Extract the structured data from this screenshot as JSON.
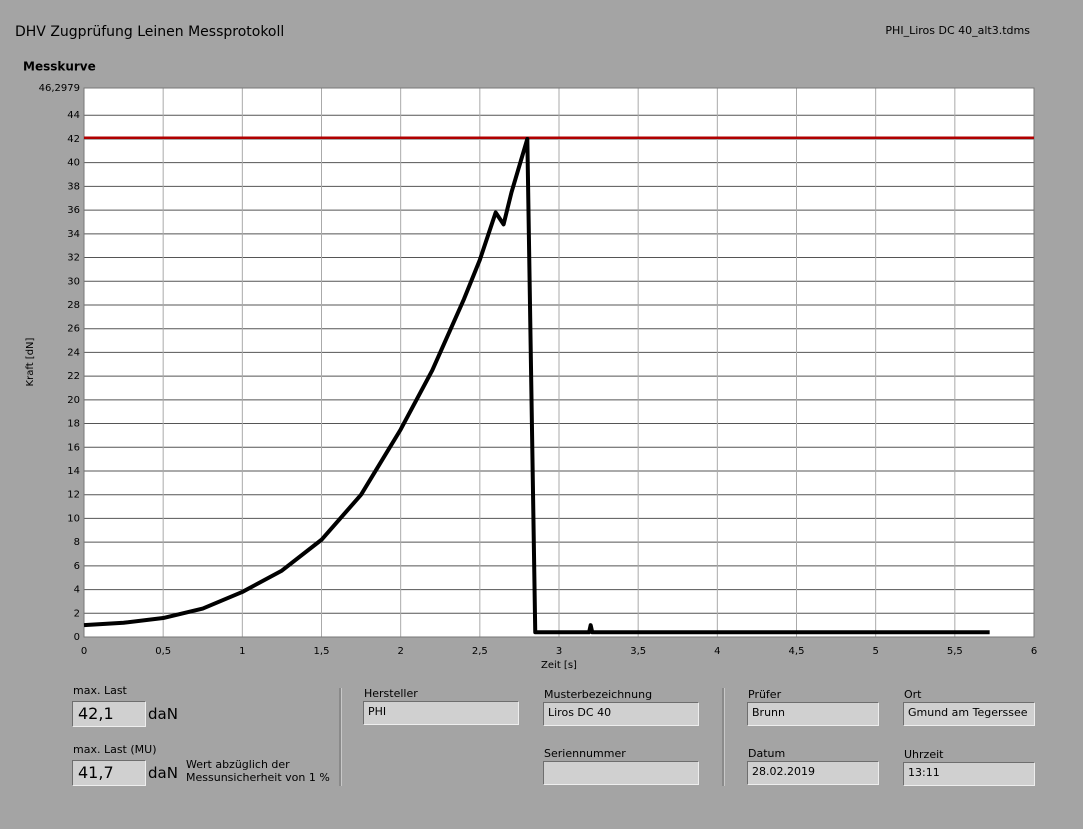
{
  "header": {
    "title": "DHV Zugprüfung Leinen Messprotokoll",
    "file": "PHI_Liros DC 40_alt3.tdms"
  },
  "chart_data": {
    "type": "line",
    "title": "Messkurve",
    "x_label": "Zeit [s]",
    "y_label": "Kraft [dN]",
    "xlim": [
      0,
      6
    ],
    "ylim": [
      0,
      46.2979
    ],
    "xticks": [
      0,
      {
        "value": 0.5,
        "label": "0,5"
      },
      1,
      {
        "value": 1.5,
        "label": "1,5"
      },
      2,
      {
        "value": 2.5,
        "label": "2,5"
      },
      3,
      {
        "value": 3.5,
        "label": "3,5"
      },
      4,
      {
        "value": 4.5,
        "label": "4,5"
      },
      5,
      {
        "value": 5.5,
        "label": "5,5"
      },
      6
    ],
    "yticks": [
      0,
      2,
      4,
      6,
      8,
      10,
      12,
      14,
      16,
      18,
      20,
      22,
      24,
      26,
      28,
      30,
      32,
      34,
      36,
      38,
      40,
      42,
      44,
      {
        "value": 46.2979,
        "label": "46,2979"
      }
    ],
    "grid": true,
    "series": [
      {
        "color": "#000000",
        "x": [
          0,
          0.25,
          0.5,
          0.75,
          1,
          1.25,
          1.5,
          1.75,
          2,
          2.2,
          2.4,
          2.5,
          2.6,
          2.65,
          2.7,
          2.8,
          2.85,
          3.19,
          3.2,
          3.21,
          4,
          5,
          5.72
        ],
        "values": [
          1.0,
          1.2,
          1.6,
          2.4,
          3.8,
          5.6,
          8.2,
          12,
          17.5,
          22.5,
          28.5,
          31.8,
          35.8,
          34.8,
          37.5,
          42,
          0.4,
          0.4,
          1.0,
          0.4,
          0.4,
          0.4,
          0.4
        ]
      }
    ],
    "reference_line": {
      "value": 42.1,
      "color": "#b00000"
    }
  },
  "fields": {
    "max_last": {
      "label": "max. Last",
      "value": "42,1",
      "unit": "daN"
    },
    "max_last_mu": {
      "label": "max. Last (MU)",
      "value": "41,7",
      "unit": "daN",
      "note": [
        "Wert abzüglich der",
        "Messunsicherheit von 1 %"
      ]
    },
    "hersteller": {
      "label": "Hersteller",
      "value": "PHI"
    },
    "musterbezeichnung": {
      "label": "Musterbezeichnung",
      "value": "Liros DC 40"
    },
    "seriennummer": {
      "label": "Seriennummer"
    },
    "pruefer": {
      "label": "Prüfer",
      "value": "Brunn"
    },
    "ort": {
      "label": "Ort",
      "value": "Gmund am Tegerssee"
    },
    "datum": {
      "label": "Datum",
      "value": "28.02.2019"
    },
    "uhrzeit": {
      "label": "Uhrzeit",
      "value": "13:11"
    }
  }
}
